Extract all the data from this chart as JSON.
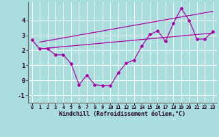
{
  "xlabel": "Windchill (Refroidissement éolien,°C)",
  "background_color": "#aadddd",
  "grid_color": "#ffffff",
  "line_color": "#aa00aa",
  "xlim": [
    -0.5,
    23.5
  ],
  "ylim": [
    -1.5,
    5.2
  ],
  "yticks": [
    -1,
    0,
    1,
    2,
    3,
    4
  ],
  "xticks": [
    0,
    1,
    2,
    3,
    4,
    5,
    6,
    7,
    8,
    9,
    10,
    11,
    12,
    13,
    14,
    15,
    16,
    17,
    18,
    19,
    20,
    21,
    22,
    23
  ],
  "data_x": [
    0,
    1,
    2,
    3,
    4,
    5,
    6,
    7,
    8,
    9,
    10,
    11,
    12,
    13,
    14,
    15,
    16,
    17,
    18,
    19,
    20,
    21,
    22,
    23
  ],
  "data_y": [
    2.7,
    2.1,
    2.1,
    1.7,
    1.7,
    1.1,
    -0.3,
    0.35,
    -0.3,
    -0.35,
    -0.35,
    0.5,
    1.15,
    1.35,
    2.3,
    3.05,
    3.3,
    2.6,
    3.8,
    4.8,
    4.0,
    2.75,
    2.75,
    3.25
  ],
  "trend1_x": [
    1,
    23
  ],
  "trend1_y": [
    2.1,
    3.15
  ],
  "trend2_x": [
    1,
    23
  ],
  "trend2_y": [
    2.55,
    4.6
  ]
}
